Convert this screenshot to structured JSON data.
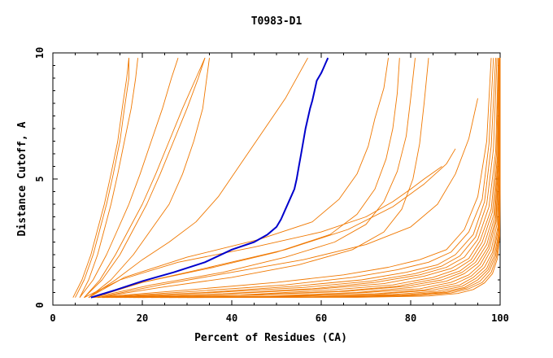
{
  "chart_data": {
    "type": "line",
    "title": "T0983-D1",
    "xlabel": "Percent of Residues (CA)",
    "ylabel": "Distance Cutoff, A",
    "xlim": [
      0,
      100
    ],
    "ylim": [
      0,
      10
    ],
    "xticks": [
      0,
      20,
      40,
      60,
      80,
      100
    ],
    "yticks": [
      0,
      5,
      10
    ],
    "grid": false,
    "legend": "none",
    "colors": {
      "highlight": "#0000cc",
      "others": "#f07800"
    },
    "highlight_series": {
      "x": [
        8.5,
        14,
        20,
        27,
        34,
        40,
        45,
        48,
        50,
        51,
        52,
        53,
        54,
        54.5,
        55,
        55.5,
        56,
        56.5,
        57,
        57.5,
        58,
        58.5,
        59,
        60,
        60.5,
        61,
        61.5
      ],
      "y": [
        0.3,
        0.6,
        0.95,
        1.3,
        1.7,
        2.2,
        2.5,
        2.8,
        3.1,
        3.4,
        3.8,
        4.2,
        4.6,
        5.0,
        5.5,
        6.0,
        6.5,
        7.0,
        7.4,
        7.8,
        8.1,
        8.5,
        8.9,
        9.2,
        9.4,
        9.6,
        9.8
      ]
    },
    "other_series": [
      {
        "x": [
          5,
          7,
          9,
          10.5,
          12,
          13.5,
          15,
          16,
          17,
          17
        ],
        "y": [
          0.3,
          1.0,
          2.0,
          3.0,
          4.0,
          5.2,
          6.5,
          7.8,
          9.0,
          9.8
        ]
      },
      {
        "x": [
          6,
          8,
          10,
          11.5,
          13,
          14.5,
          16,
          17.5,
          18.5,
          19
        ],
        "y": [
          0.3,
          1.0,
          2.0,
          3.0,
          4.0,
          5.2,
          6.5,
          7.8,
          9.0,
          9.8
        ]
      },
      {
        "x": [
          4.5,
          6.5,
          8.5,
          10,
          11.5,
          13,
          14.5,
          15.5,
          16.5,
          17
        ],
        "y": [
          0.3,
          1.0,
          2.0,
          3.0,
          4.0,
          5.2,
          6.5,
          7.8,
          9.0,
          9.8
        ]
      },
      {
        "x": [
          6,
          9,
          12,
          14.5,
          17,
          19.5,
          22,
          24.5,
          26.5,
          28
        ],
        "y": [
          0.3,
          1.0,
          2.0,
          3.0,
          4.0,
          5.2,
          6.5,
          7.8,
          9.0,
          9.8
        ]
      },
      {
        "x": [
          7,
          11,
          15,
          18,
          21,
          24,
          27,
          30,
          32.5,
          34
        ],
        "y": [
          0.3,
          1.0,
          2.0,
          3.0,
          4.0,
          5.2,
          6.5,
          7.8,
          9.0,
          9.8
        ]
      },
      {
        "x": [
          7,
          10.5,
          14,
          17,
          20,
          23,
          26,
          29,
          32,
          34
        ],
        "y": [
          0.3,
          1.0,
          2.0,
          3.0,
          4.0,
          5.2,
          6.5,
          7.8,
          9.0,
          9.8
        ]
      },
      {
        "x": [
          8,
          13,
          18,
          22,
          26,
          29,
          31.5,
          33.5,
          35
        ],
        "y": [
          0.3,
          1.0,
          2.0,
          3.0,
          4.0,
          5.2,
          6.5,
          7.8,
          9.8
        ]
      },
      {
        "x": [
          8,
          14,
          20,
          26,
          32,
          37,
          42,
          47,
          52,
          57
        ],
        "y": [
          0.3,
          1.0,
          1.8,
          2.5,
          3.3,
          4.3,
          5.6,
          6.9,
          8.2,
          9.8
        ]
      },
      {
        "x": [
          7,
          15,
          28,
          45,
          60,
          70,
          76,
          80,
          83,
          87
        ],
        "y": [
          0.3,
          1.0,
          1.7,
          2.3,
          2.9,
          3.5,
          4.1,
          4.6,
          5.0,
          5.5
        ]
      },
      {
        "x": [
          8,
          16,
          30,
          46,
          58,
          64,
          68,
          70.5,
          72,
          74,
          75
        ],
        "y": [
          0.3,
          1.1,
          1.9,
          2.6,
          3.3,
          4.2,
          5.2,
          6.3,
          7.4,
          8.6,
          9.8
        ]
      },
      {
        "x": [
          9,
          20,
          36,
          50,
          62,
          68,
          72,
          74.5,
          76,
          77,
          77.5
        ],
        "y": [
          0.3,
          0.9,
          1.5,
          2.1,
          2.8,
          3.6,
          4.6,
          5.8,
          7.0,
          8.4,
          9.8
        ]
      },
      {
        "x": [
          9,
          22,
          38,
          52,
          63,
          70,
          74,
          77,
          79,
          80,
          81
        ],
        "y": [
          0.3,
          0.8,
          1.3,
          1.9,
          2.5,
          3.2,
          4.1,
          5.3,
          6.7,
          8.2,
          9.8
        ]
      },
      {
        "x": [
          10,
          24,
          40,
          55,
          67,
          74,
          78,
          80.5,
          82,
          83,
          84
        ],
        "y": [
          0.3,
          0.7,
          1.1,
          1.6,
          2.2,
          2.9,
          3.8,
          5.0,
          6.4,
          8.0,
          9.8
        ]
      },
      {
        "x": [
          9,
          20,
          35,
          52,
          66,
          76,
          83,
          88,
          90
        ],
        "y": [
          0.3,
          0.9,
          1.5,
          2.2,
          3.0,
          3.9,
          4.8,
          5.6,
          6.2
        ]
      },
      {
        "x": [
          10,
          24,
          40,
          56,
          70,
          80,
          86,
          90,
          93,
          95
        ],
        "y": [
          0.3,
          0.8,
          1.3,
          1.8,
          2.4,
          3.1,
          4.0,
          5.2,
          6.6,
          8.2
        ]
      },
      {
        "x": [
          9,
          30,
          50,
          65,
          75,
          82,
          88,
          92,
          95,
          97,
          98
        ],
        "y": [
          0.3,
          0.6,
          0.9,
          1.2,
          1.5,
          1.8,
          2.2,
          3.0,
          4.3,
          6.5,
          9.8
        ]
      },
      {
        "x": [
          10,
          32,
          52,
          67,
          77,
          84,
          89,
          93,
          96,
          97.5,
          98.5
        ],
        "y": [
          0.3,
          0.55,
          0.8,
          1.1,
          1.4,
          1.7,
          2.1,
          2.9,
          4.2,
          6.4,
          9.8
        ]
      },
      {
        "x": [
          11,
          34,
          54,
          69,
          79,
          86,
          90,
          94,
          96.5,
          98,
          99
        ],
        "y": [
          0.3,
          0.5,
          0.75,
          1.0,
          1.3,
          1.6,
          2.0,
          2.8,
          4.1,
          6.3,
          9.8
        ]
      },
      {
        "x": [
          11,
          36,
          56,
          71,
          81,
          87,
          91,
          94.5,
          97,
          98.5,
          99.3
        ],
        "y": [
          0.3,
          0.5,
          0.7,
          0.95,
          1.25,
          1.55,
          1.95,
          2.7,
          4.0,
          6.2,
          9.8
        ]
      },
      {
        "x": [
          12,
          38,
          58,
          72,
          82,
          88,
          92,
          95,
          97.5,
          99,
          99.6
        ],
        "y": [
          0.3,
          0.45,
          0.65,
          0.9,
          1.2,
          1.5,
          1.9,
          2.6,
          3.9,
          6.1,
          9.8
        ]
      },
      {
        "x": [
          13,
          40,
          60,
          74,
          83,
          89,
          93,
          95.5,
          98,
          99.2,
          99.7
        ],
        "y": [
          0.3,
          0.45,
          0.65,
          0.85,
          1.15,
          1.45,
          1.85,
          2.55,
          3.8,
          6.0,
          9.8
        ]
      },
      {
        "x": [
          14,
          42,
          62,
          76,
          85,
          90,
          93.5,
          96,
          98.3,
          99.4,
          99.8
        ],
        "y": [
          0.3,
          0.4,
          0.6,
          0.8,
          1.1,
          1.4,
          1.8,
          2.5,
          3.7,
          5.9,
          9.8
        ]
      },
      {
        "x": [
          15,
          44,
          64,
          77,
          86,
          91,
          94,
          96.5,
          98.6,
          99.5,
          99.9
        ],
        "y": [
          0.3,
          0.4,
          0.55,
          0.75,
          1.05,
          1.35,
          1.75,
          2.45,
          3.6,
          5.8,
          9.8
        ]
      },
      {
        "x": [
          16,
          46,
          66,
          79,
          87,
          91.5,
          94.5,
          97,
          98.8,
          99.6,
          99.9
        ],
        "y": [
          0.3,
          0.4,
          0.55,
          0.75,
          1.0,
          1.3,
          1.7,
          2.4,
          3.5,
          5.7,
          9.8
        ]
      },
      {
        "x": [
          17,
          48,
          68,
          80,
          88,
          92,
          95,
          97.3,
          99,
          99.7,
          100
        ],
        "y": [
          0.3,
          0.35,
          0.5,
          0.7,
          0.95,
          1.25,
          1.65,
          2.3,
          3.4,
          5.6,
          9.8
        ]
      },
      {
        "x": [
          18,
          50,
          70,
          82,
          89,
          93,
          95.5,
          97.6,
          99.1,
          99.8,
          100
        ],
        "y": [
          0.3,
          0.35,
          0.5,
          0.65,
          0.9,
          1.2,
          1.6,
          2.25,
          3.3,
          5.5,
          9.8
        ]
      },
      {
        "x": [
          19,
          52,
          72,
          83,
          90,
          93.5,
          96,
          98,
          99.3,
          99.9,
          100
        ],
        "y": [
          0.3,
          0.35,
          0.45,
          0.6,
          0.85,
          1.15,
          1.55,
          2.2,
          3.2,
          5.4,
          9.8
        ]
      },
      {
        "x": [
          20,
          55,
          74,
          85,
          91,
          94,
          96.5,
          98.3,
          99.5,
          99.9,
          100
        ],
        "y": [
          0.3,
          0.35,
          0.45,
          0.6,
          0.8,
          1.1,
          1.5,
          2.1,
          3.1,
          5.3,
          9.8
        ]
      },
      {
        "x": [
          22,
          58,
          76,
          86,
          91.5,
          94.5,
          97,
          98.5,
          99.6,
          100,
          100
        ],
        "y": [
          0.3,
          0.33,
          0.42,
          0.55,
          0.75,
          1.05,
          1.45,
          2.05,
          3.0,
          5.2,
          9.8
        ]
      },
      {
        "x": [
          24,
          60,
          78,
          87,
          92,
          95,
          97.3,
          98.8,
          99.7,
          100,
          100
        ],
        "y": [
          0.3,
          0.33,
          0.4,
          0.52,
          0.7,
          1.0,
          1.4,
          2.0,
          2.9,
          5.1,
          9.8
        ]
      },
      {
        "x": [
          26,
          62,
          80,
          88,
          92.5,
          95.5,
          97.6,
          99,
          99.8,
          100,
          100
        ],
        "y": [
          0.3,
          0.32,
          0.4,
          0.5,
          0.68,
          0.95,
          1.35,
          1.95,
          2.85,
          5.0,
          9.8
        ]
      },
      {
        "x": [
          28,
          65,
          82,
          89,
          93,
          96,
          98,
          99.2,
          99.9,
          100,
          100
        ],
        "y": [
          0.3,
          0.32,
          0.38,
          0.48,
          0.65,
          0.9,
          1.3,
          1.9,
          2.8,
          4.9,
          9.8
        ]
      },
      {
        "x": [
          30,
          68,
          84,
          90.5,
          94,
          96.5,
          98.3,
          99.4,
          99.9,
          100,
          100
        ],
        "y": [
          0.3,
          0.31,
          0.36,
          0.46,
          0.62,
          0.88,
          1.25,
          1.85,
          2.75,
          4.8,
          9.8
        ]
      }
    ]
  }
}
